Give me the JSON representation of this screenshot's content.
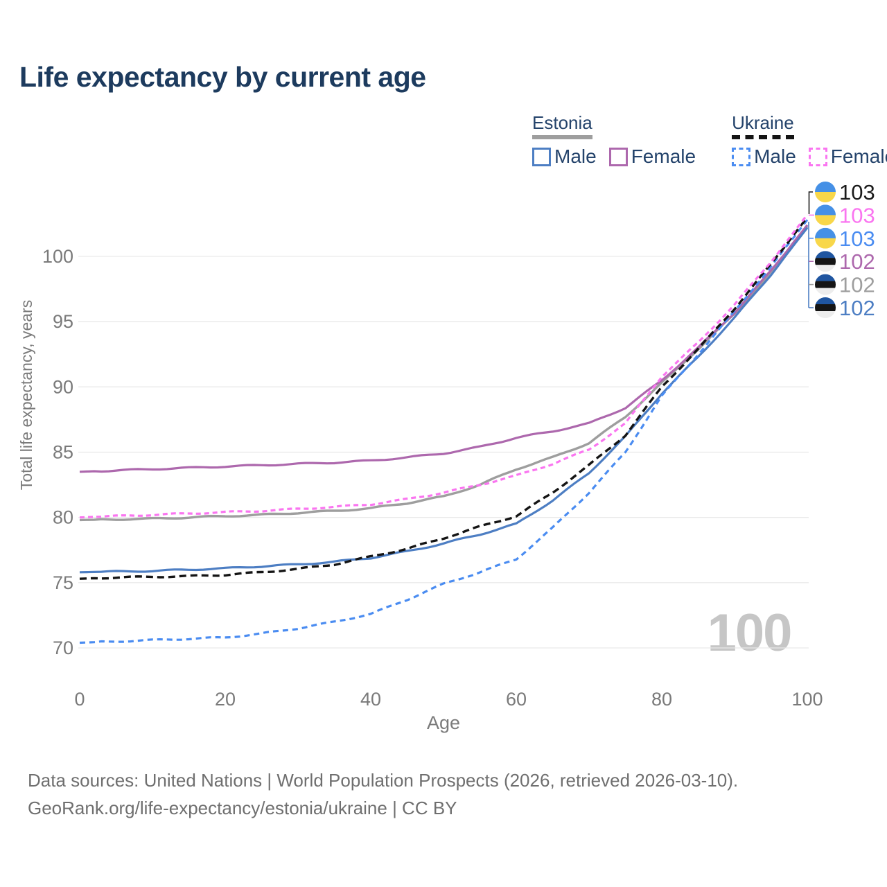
{
  "title": "Life expectancy by current age",
  "legend": {
    "groups": [
      {
        "id": "estonia",
        "country": "Estonia",
        "line_style": "solid",
        "line_color": "#9e9e9e",
        "items": [
          {
            "id": "male",
            "label": "Male",
            "color": "#4d7ec3"
          },
          {
            "id": "female",
            "label": "Female",
            "color": "#ad68ad"
          }
        ]
      },
      {
        "id": "ukraine",
        "country": "Ukraine",
        "line_style": "dashed",
        "line_color": "#141414",
        "items": [
          {
            "id": "male",
            "label": "Male",
            "color": "#4a8cf1"
          },
          {
            "id": "female",
            "label": "Female",
            "color": "#fa75f0"
          }
        ]
      }
    ]
  },
  "chart_data": {
    "type": "line",
    "x": [
      0,
      5,
      10,
      15,
      20,
      25,
      30,
      35,
      40,
      45,
      50,
      55,
      60,
      65,
      70,
      75,
      80,
      85,
      90,
      95,
      100
    ],
    "axis": {
      "x": {
        "label": "Age",
        "ticks": [
          0,
          20,
          40,
          60,
          80,
          100
        ]
      },
      "y": {
        "label": "Total life expectancy, years",
        "ticks": [
          70,
          75,
          80,
          85,
          90,
          95,
          100
        ]
      }
    },
    "xlim": [
      0,
      100
    ],
    "ylim": [
      70,
      100
    ],
    "grid": "horizontal",
    "grid_color": "#e9e9e9",
    "axis_color": "#7a7a7a",
    "age_counter": "100",
    "age_counter_color": "#c6c6c6",
    "series": [
      {
        "id": "estonia-both",
        "name": "Estonia (both sexes)",
        "color": "#9e9e9e",
        "dash": null,
        "width": 3.4,
        "end_label": "102",
        "values": [
          79.8,
          79.85,
          79.9,
          80.0,
          80.1,
          80.2,
          80.35,
          80.5,
          80.7,
          81.1,
          81.6,
          82.5,
          83.7,
          84.6,
          85.7,
          87.7,
          90.3,
          92.9,
          95.6,
          98.8,
          102.3
        ]
      },
      {
        "id": "estonia-female",
        "name": "Estonia Female",
        "color": "#ad68ad",
        "dash": null,
        "width": 3.2,
        "end_label": "102",
        "values": [
          83.5,
          83.6,
          83.7,
          83.8,
          83.9,
          84.0,
          84.1,
          84.2,
          84.35,
          84.6,
          84.9,
          85.4,
          86.1,
          86.6,
          87.2,
          88.4,
          90.5,
          93.0,
          95.7,
          98.9,
          102.4
        ]
      },
      {
        "id": "estonia-male",
        "name": "Estonia Male",
        "color": "#4d7ec3",
        "dash": null,
        "width": 3.2,
        "end_label": "102",
        "values": [
          75.8,
          75.85,
          75.9,
          76.0,
          76.1,
          76.25,
          76.4,
          76.6,
          76.9,
          77.4,
          78.0,
          78.7,
          79.5,
          81.3,
          83.4,
          86.2,
          89.5,
          92.3,
          95.3,
          98.6,
          102.2
        ]
      },
      {
        "id": "ukraine-male",
        "name": "Ukraine Male",
        "color": "#4a8cf1",
        "dash": "8,6",
        "width": 3.2,
        "end_label": "103",
        "values": [
          70.4,
          70.5,
          70.6,
          70.7,
          70.8,
          71.1,
          71.5,
          72.0,
          72.6,
          73.7,
          74.9,
          75.8,
          76.8,
          79.2,
          81.9,
          85.0,
          89.3,
          92.5,
          95.8,
          99.2,
          102.8
        ]
      },
      {
        "id": "ukraine-both",
        "name": "Ukraine (both sexes)",
        "color": "#141414",
        "dash": "10,6",
        "width": 3.4,
        "end_label": "103",
        "values": [
          75.3,
          75.4,
          75.45,
          75.5,
          75.6,
          75.8,
          76.05,
          76.4,
          77.0,
          77.6,
          78.4,
          79.3,
          80.1,
          81.9,
          84.0,
          86.3,
          90.0,
          92.9,
          96.0,
          99.4,
          103.0
        ]
      },
      {
        "id": "ukraine-female",
        "name": "Ukraine Female",
        "color": "#fa75f0",
        "dash": "7,5",
        "width": 3.2,
        "end_label": "103",
        "values": [
          80.0,
          80.1,
          80.2,
          80.3,
          80.4,
          80.5,
          80.65,
          80.8,
          81.0,
          81.4,
          81.9,
          82.5,
          83.2,
          84.1,
          85.2,
          87.2,
          90.8,
          93.4,
          96.3,
          99.6,
          103.2
        ]
      }
    ],
    "end_labels": [
      {
        "label": "103",
        "flag": "ukraine",
        "color": "#1a1a1a",
        "series": "ukraine-both"
      },
      {
        "label": "103",
        "flag": "ukraine",
        "color": "#fa75f0",
        "series": "ukraine-female"
      },
      {
        "label": "103",
        "flag": "ukraine",
        "color": "#4a8cf1",
        "series": "ukraine-male"
      },
      {
        "label": "102",
        "flag": "estonia",
        "color": "#ad68ad",
        "series": "estonia-female"
      },
      {
        "label": "102",
        "flag": "estonia",
        "color": "#9e9e9e",
        "series": "estonia-both"
      },
      {
        "label": "102",
        "flag": "estonia",
        "color": "#4d7ec3",
        "series": "estonia-male"
      }
    ],
    "flag_colors": {
      "ukraine": [
        "#4590e6",
        "#f8d74a"
      ],
      "estonia": [
        "#1f55a0",
        "#151515",
        "#ededed"
      ]
    }
  },
  "footer": {
    "line1": "Data sources: United Nations | World Population Prospects (2026, retrieved 2026-03-10).",
    "line2": "GeoRank.org/life-expectancy/estonia/ukraine | CC BY"
  }
}
